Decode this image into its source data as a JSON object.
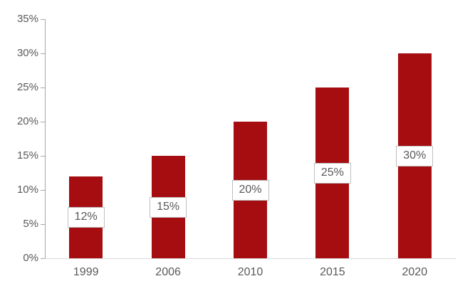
{
  "chart_data": {
    "type": "bar",
    "categories": [
      "1999",
      "2006",
      "2010",
      "2015",
      "2020"
    ],
    "values": [
      12,
      15,
      20,
      25,
      30
    ],
    "data_labels": [
      "12%",
      "15%",
      "20%",
      "25%",
      "30%"
    ],
    "y_ticks": [
      "0%",
      "5%",
      "10%",
      "15%",
      "20%",
      "25%",
      "30%",
      "35%"
    ],
    "y_tick_values": [
      0,
      5,
      10,
      15,
      20,
      25,
      30,
      35
    ],
    "ylim": [
      0,
      35
    ],
    "xlabel": "",
    "ylabel": "",
    "grid": false,
    "legend": "none",
    "data_label_position": "inside-center",
    "colors": {
      "bar": "#A50D10",
      "axis_text": "#595959",
      "y_axis_line": "#A6A6A6",
      "tick_line": "#A6A6A6",
      "baseline": "#D9D9D9",
      "label_box_bg": "#FFFFFF",
      "label_box_border": "#BFBFBF",
      "label_text": "#595959",
      "background": "#FFFFFF"
    }
  }
}
